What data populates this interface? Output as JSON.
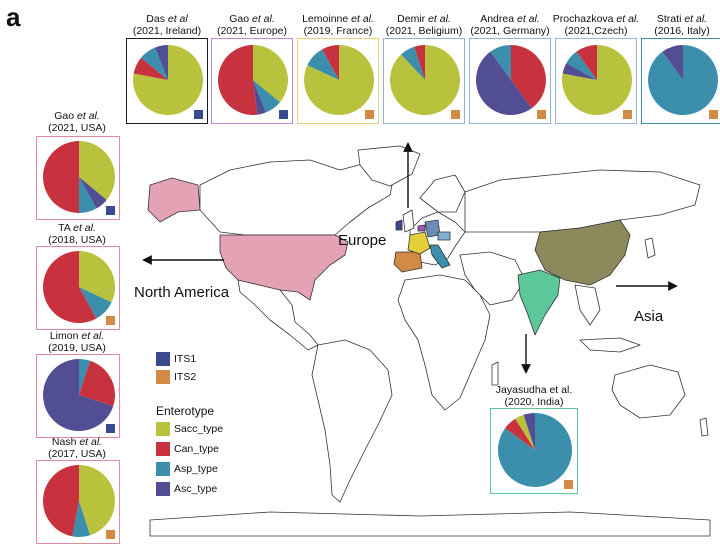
{
  "panel_label": "a",
  "colors": {
    "sacc": "#b8c23c",
    "can": "#c8323f",
    "asp": "#3b8fad",
    "asc": "#524e94",
    "its1": "#3a4a8f",
    "its2": "#d28b45",
    "map_land": "#ffffff",
    "map_border": "#333333",
    "usa": "#e3a3b5",
    "india": "#5bc79a",
    "china": "#8c8a5c"
  },
  "studies": [
    {
      "id": "das",
      "title_line1_prefix": "Das",
      "title_line1_italic": "et al",
      "title_line2": "(2021, Ireland)",
      "marker": "ITS1",
      "slices": [
        {
          "type": "sacc",
          "value": 0.78
        },
        {
          "type": "can",
          "value": 0.08
        },
        {
          "type": "asp",
          "value": 0.08
        },
        {
          "type": "asc",
          "value": 0.06
        }
      ]
    },
    {
      "id": "gao-europe",
      "title_line1_prefix": "Gao",
      "title_line1_italic": "et al.",
      "title_line2": "(2021, Europe)",
      "marker": "ITS1",
      "slices": [
        {
          "type": "sacc",
          "value": 0.36
        },
        {
          "type": "asp",
          "value": 0.08
        },
        {
          "type": "asc",
          "value": 0.04
        },
        {
          "type": "can",
          "value": 0.52
        }
      ]
    },
    {
      "id": "lemoine",
      "title_line1_prefix": "Lemoinne",
      "title_line1_italic": "et al.",
      "title_line2": "(2019, France)",
      "marker": "ITS2",
      "slices": [
        {
          "type": "sacc",
          "value": 0.82
        },
        {
          "type": "asp",
          "value": 0.1
        },
        {
          "type": "can",
          "value": 0.08
        }
      ]
    },
    {
      "id": "demir",
      "title_line1_prefix": "Demir",
      "title_line1_italic": "et al.",
      "title_line2": "(2021, Beligium)",
      "marker": "ITS2",
      "slices": [
        {
          "type": "sacc",
          "value": 0.88
        },
        {
          "type": "asp",
          "value": 0.07
        },
        {
          "type": "can",
          "value": 0.05
        }
      ]
    },
    {
      "id": "andrea",
      "title_line1_prefix": "Andrea",
      "title_line1_italic": "et al.",
      "title_line2": "(2021, Germany)",
      "marker": "ITS2",
      "slices": [
        {
          "type": "can",
          "value": 0.4
        },
        {
          "type": "asc",
          "value": 0.5
        },
        {
          "type": "asp",
          "value": 0.1
        }
      ]
    },
    {
      "id": "prochazkova",
      "title_line1_prefix": "Prochazkova",
      "title_line1_italic": "et al.",
      "title_line2": "(2021,Czech)",
      "marker": "ITS2",
      "slices": [
        {
          "type": "sacc",
          "value": 0.78
        },
        {
          "type": "asc",
          "value": 0.05
        },
        {
          "type": "asp",
          "value": 0.07
        },
        {
          "type": "can",
          "value": 0.1
        }
      ]
    },
    {
      "id": "strati",
      "title_line1_prefix": "Strati",
      "title_line1_italic": "et al.",
      "title_line2": "(2016, Italy)",
      "marker": "ITS2",
      "slices": [
        {
          "type": "asp",
          "value": 0.9
        },
        {
          "type": "asc",
          "value": 0.1
        }
      ]
    },
    {
      "id": "gao-usa",
      "title_line1_prefix": "Gao",
      "title_line1_italic": "et al.",
      "title_line2": "(2021, USA)",
      "marker": "ITS1",
      "slices": [
        {
          "type": "sacc",
          "value": 0.36
        },
        {
          "type": "asc",
          "value": 0.06
        },
        {
          "type": "asp",
          "value": 0.08
        },
        {
          "type": "can",
          "value": 0.5
        }
      ]
    },
    {
      "id": "ta",
      "title_line1_prefix": "TA",
      "title_line1_italic": "et al.",
      "title_line2": "(2018, USA)",
      "marker": "ITS2",
      "slices": [
        {
          "type": "sacc",
          "value": 0.32
        },
        {
          "type": "asp",
          "value": 0.1
        },
        {
          "type": "can",
          "value": 0.58
        }
      ]
    },
    {
      "id": "limon",
      "title_line1_prefix": "Limon",
      "title_line1_italic": "et al.",
      "title_line2": "(2019, USA)",
      "marker": "ITS1",
      "slices": [
        {
          "type": "asp",
          "value": 0.05
        },
        {
          "type": "can",
          "value": 0.25
        },
        {
          "type": "asc",
          "value": 0.7
        }
      ]
    },
    {
      "id": "nash",
      "title_line1_prefix": "Nash",
      "title_line1_italic": "et al.",
      "title_line2": "(2017, USA)",
      "marker": "ITS2",
      "slices": [
        {
          "type": "sacc",
          "value": 0.45
        },
        {
          "type": "asp",
          "value": 0.08
        },
        {
          "type": "can",
          "value": 0.47
        }
      ]
    },
    {
      "id": "jayasudha",
      "title_line1_prefix": "Jayasudha et al.",
      "title_line1_italic": "",
      "title_line2": "(2020, India)",
      "marker": "ITS2",
      "slices": [
        {
          "type": "asp",
          "value": 0.85
        },
        {
          "type": "can",
          "value": 0.06
        },
        {
          "type": "sacc",
          "value": 0.04
        },
        {
          "type": "asc",
          "value": 0.05
        }
      ]
    }
  ],
  "regions": {
    "europe": "Europe",
    "north_america": "North America",
    "asia": "Asia"
  },
  "marker_legend": [
    {
      "key": "ITS1",
      "label": "ITS1",
      "color": "#3a4a8f"
    },
    {
      "key": "ITS2",
      "label": "ITS2",
      "color": "#d28b45"
    }
  ],
  "enterotype_legend": {
    "title": "Enterotype",
    "items": [
      {
        "label": "Sacc_type",
        "color": "#b8c23c"
      },
      {
        "label": "Can_type",
        "color": "#c8323f"
      },
      {
        "label": "Asp_type",
        "color": "#3b8fad"
      },
      {
        "label": "Asc_type",
        "color": "#524e94"
      }
    ]
  }
}
